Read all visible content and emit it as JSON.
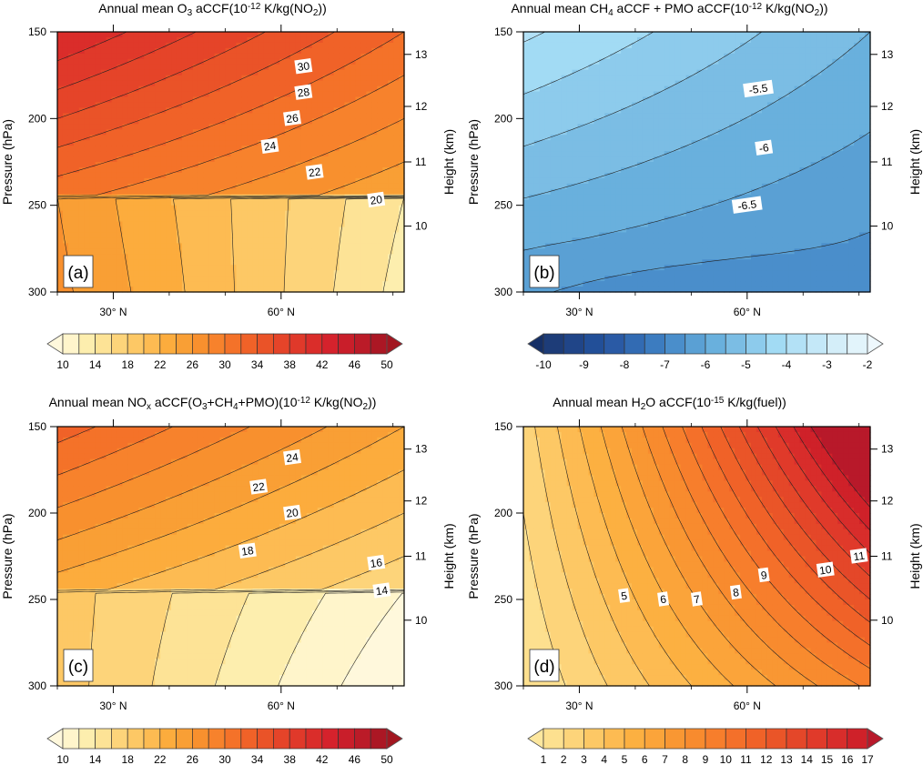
{
  "chart_data": [
    {
      "id": "a",
      "type": "contour",
      "panel_label": "(a)",
      "title_parts": [
        [
          "Annual mean O",
          "n"
        ],
        [
          "3",
          "sub"
        ],
        [
          " aCCF(10",
          "n"
        ],
        [
          "-12",
          "sup"
        ],
        [
          " K/kg(NO",
          "n"
        ],
        [
          "2",
          "sub"
        ],
        [
          "))",
          "n"
        ]
      ],
      "title": "Annual mean O3 aCCF(10^-12 K/kg(NO2))",
      "xlabel": "",
      "ylabel": "Pressure (hPa)",
      "y2label": "Height (km)",
      "xlim": [
        20,
        82
      ],
      "ylim": [
        150,
        300
      ],
      "xticks": [
        {
          "v": 30,
          "label": "30° N"
        },
        {
          "v": 60,
          "label": "60° N"
        }
      ],
      "xminor": [
        40,
        50,
        70,
        80
      ],
      "yticks": [
        150,
        200,
        250,
        300
      ],
      "y2ticks": [
        {
          "p": 163,
          "label": "13"
        },
        {
          "p": 193,
          "label": "12"
        },
        {
          "p": 225,
          "label": "11"
        },
        {
          "p": 262,
          "label": "10"
        }
      ],
      "palette": "orange",
      "levels": {
        "min": 10,
        "max": 50,
        "step": 2
      },
      "field": {
        "base": 20,
        "lat_ref": 60,
        "p_ref": 250,
        "a": -0.12,
        "b": -0.07,
        "c": 0.0006,
        "kind": "o3"
      },
      "contour_labels": [
        {
          "text": "30",
          "lat": 64,
          "p": 170
        },
        {
          "text": "28",
          "lat": 64,
          "p": 185
        },
        {
          "text": "26",
          "lat": 62,
          "p": 200
        },
        {
          "text": "24",
          "lat": 58,
          "p": 216
        },
        {
          "text": "22",
          "lat": 66,
          "p": 231
        },
        {
          "text": "20",
          "lat": 77,
          "p": 247
        }
      ],
      "colorbar": {
        "labels": [
          "10",
          "14",
          "18",
          "22",
          "26",
          "30",
          "34",
          "38",
          "42",
          "46",
          "50"
        ]
      }
    },
    {
      "id": "b",
      "type": "contour",
      "panel_label": "(b)",
      "title_parts": [
        [
          "Annual mean CH",
          "n"
        ],
        [
          "4",
          "sub"
        ],
        [
          " aCCF + PMO aCCF(10",
          "n"
        ],
        [
          "-12",
          "sup"
        ],
        [
          " K/kg(NO",
          "n"
        ],
        [
          "2",
          "sub"
        ],
        [
          "))",
          "n"
        ]
      ],
      "title": "Annual mean CH4 aCCF + PMO aCCF(10^-12 K/kg(NO2))",
      "ylabel": "Pressure (hPa)",
      "y2label": "Height (km)",
      "xlim": [
        20,
        82
      ],
      "ylim": [
        150,
        300
      ],
      "xticks": [
        {
          "v": 30,
          "label": "30° N"
        },
        {
          "v": 60,
          "label": "60° N"
        }
      ],
      "xminor": [
        40,
        50,
        70,
        80
      ],
      "yticks": [
        150,
        200,
        250,
        300
      ],
      "y2ticks": [
        {
          "p": 163,
          "label": "13"
        },
        {
          "p": 193,
          "label": "12"
        },
        {
          "p": 225,
          "label": "11"
        },
        {
          "p": 262,
          "label": "10"
        }
      ],
      "palette": "blue",
      "levels": {
        "min": -10,
        "max": -2,
        "step": 0.5
      },
      "contour_labels": [
        {
          "text": "-5.5",
          "lat": 62,
          "p": 183
        },
        {
          "text": "-6",
          "lat": 63,
          "p": 217
        },
        {
          "text": "-6.5",
          "lat": 60,
          "p": 250
        }
      ],
      "colorbar": {
        "labels": [
          "-10",
          "-9",
          "-8",
          "-7",
          "-6",
          "-5",
          "-4",
          "-3",
          "-2"
        ]
      }
    },
    {
      "id": "c",
      "type": "contour",
      "panel_label": "(c)",
      "title_parts": [
        [
          "Annual mean NO",
          "n"
        ],
        [
          "x",
          "sub"
        ],
        [
          " aCCF(O",
          "n"
        ],
        [
          "3",
          "sub"
        ],
        [
          "+CH",
          "n"
        ],
        [
          "4",
          "sub"
        ],
        [
          "+PMO)(10",
          "n"
        ],
        [
          "-12",
          "sup"
        ],
        [
          " K/kg(NO",
          "n"
        ],
        [
          "2",
          "sub"
        ],
        [
          "))",
          "n"
        ]
      ],
      "title": "Annual mean NOx aCCF(O3+CH4+PMO)(10^-12 K/kg(NO2))",
      "ylabel": "Pressure (hPa)",
      "y2label": "Height (km)",
      "xlim": [
        20,
        82
      ],
      "ylim": [
        150,
        300
      ],
      "xticks": [
        {
          "v": 30,
          "label": "30° N"
        },
        {
          "v": 60,
          "label": "60° N"
        }
      ],
      "xminor": [
        40,
        50,
        70,
        80
      ],
      "yticks": [
        150,
        200,
        250,
        300
      ],
      "y2ticks": [
        {
          "p": 163,
          "label": "13"
        },
        {
          "p": 193,
          "label": "12"
        },
        {
          "p": 225,
          "label": "11"
        },
        {
          "p": 262,
          "label": "10"
        }
      ],
      "palette": "orange",
      "levels": {
        "min": 10,
        "max": 50,
        "step": 2
      },
      "contour_labels": [
        {
          "text": "24",
          "lat": 62,
          "p": 168
        },
        {
          "text": "22",
          "lat": 56,
          "p": 185
        },
        {
          "text": "20",
          "lat": 62,
          "p": 200
        },
        {
          "text": "18",
          "lat": 54,
          "p": 222
        },
        {
          "text": "16",
          "lat": 77,
          "p": 229
        },
        {
          "text": "14",
          "lat": 78,
          "p": 245
        }
      ],
      "colorbar": {
        "labels": [
          "10",
          "14",
          "18",
          "22",
          "26",
          "30",
          "34",
          "38",
          "42",
          "46",
          "50"
        ]
      }
    },
    {
      "id": "d",
      "type": "contour",
      "panel_label": "(d)",
      "title_parts": [
        [
          "Annual mean H",
          "n"
        ],
        [
          "2",
          "sub"
        ],
        [
          "O aCCF(10",
          "n"
        ],
        [
          "-15",
          "sup"
        ],
        [
          " K/kg(fuel))",
          "n"
        ]
      ],
      "title": "Annual mean H2O aCCF(10^-15 K/kg(fuel))",
      "ylabel": "Pressure (hPa)",
      "y2label": "Height (km)",
      "xlim": [
        20,
        82
      ],
      "ylim": [
        150,
        300
      ],
      "xticks": [
        {
          "v": 30,
          "label": "30° N"
        },
        {
          "v": 60,
          "label": "60° N"
        }
      ],
      "xminor": [
        40,
        50,
        70,
        80
      ],
      "yticks": [
        150,
        200,
        250,
        300
      ],
      "y2ticks": [
        {
          "p": 163,
          "label": "13"
        },
        {
          "p": 193,
          "label": "12"
        },
        {
          "p": 225,
          "label": "11"
        },
        {
          "p": 262,
          "label": "10"
        }
      ],
      "palette": "orange17",
      "levels": {
        "min": 1,
        "max": 17,
        "step": 1
      },
      "contour_labels": [
        {
          "text": "5",
          "lat": 38,
          "p": 248
        },
        {
          "text": "6",
          "lat": 45,
          "p": 250
        },
        {
          "text": "7",
          "lat": 51,
          "p": 250
        },
        {
          "text": "8",
          "lat": 58,
          "p": 246
        },
        {
          "text": "9",
          "lat": 63,
          "p": 236
        },
        {
          "text": "10",
          "lat": 74,
          "p": 233
        },
        {
          "text": "11",
          "lat": 80,
          "p": 225
        }
      ],
      "colorbar": {
        "labels": [
          "1",
          "2",
          "3",
          "4",
          "5",
          "6",
          "7",
          "8",
          "9",
          "10",
          "11",
          "12",
          "13",
          "14",
          "15",
          "16",
          "17"
        ]
      }
    }
  ]
}
